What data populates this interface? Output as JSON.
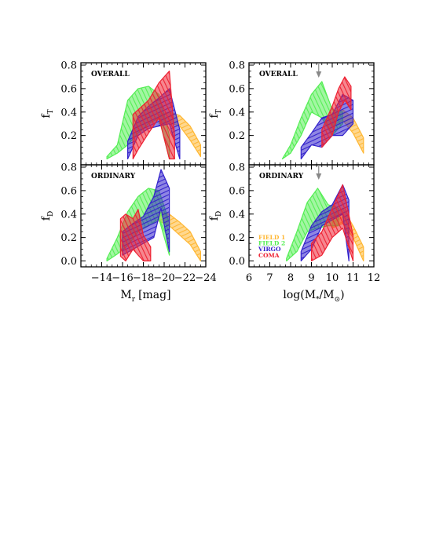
{
  "chart_data": [
    {
      "panel": "left-top",
      "type": "area",
      "label": "OVERALL",
      "ylabel": "f",
      "ylabel_sub": "T",
      "xlim": [
        -12,
        -24
      ],
      "ylim": [
        -0.05,
        0.82
      ],
      "yticks": [
        0.2,
        0.4,
        0.6,
        0.8
      ],
      "series": [
        {
          "color": "#ffb733",
          "x": [
            -19.5,
            -20.5,
            -21.5,
            -22.5,
            -23.5
          ],
          "lower": [
            0.3,
            0.31,
            0.28,
            0.16,
            0.02
          ],
          "upper": [
            0.38,
            0.4,
            0.37,
            0.28,
            0.12
          ]
        },
        {
          "color": "#55ee55",
          "x": [
            -14.5,
            -15.5,
            -16.5,
            -17.5,
            -18.5,
            -19.5,
            -20.5
          ],
          "lower": [
            0.0,
            0.05,
            0.12,
            0.22,
            0.3,
            0.35,
            0.0
          ],
          "upper": [
            0.02,
            0.12,
            0.5,
            0.6,
            0.62,
            0.55,
            0.2
          ]
        },
        {
          "color": "#3322cc",
          "x": [
            -16.5,
            -17.5,
            -18.5,
            -19.5,
            -20.5,
            -21.5
          ],
          "lower": [
            0.0,
            0.2,
            0.26,
            0.28,
            0.3,
            0.0
          ],
          "upper": [
            0.15,
            0.36,
            0.45,
            0.52,
            0.6,
            0.25
          ]
        },
        {
          "color": "#ee2233",
          "x": [
            -17.0,
            -17.5,
            -18.5,
            -19.5,
            -20.5,
            -21.0
          ],
          "lower": [
            0.0,
            0.08,
            0.22,
            0.35,
            0.0,
            0.0
          ],
          "upper": [
            0.38,
            0.42,
            0.5,
            0.65,
            0.75,
            0.2
          ]
        }
      ]
    },
    {
      "panel": "left-bottom",
      "type": "area",
      "label": "ORDINARY",
      "ylabel": "f",
      "ylabel_sub": "D",
      "xlabel": "M",
      "xlabel_sub": "r",
      "xlabel_tail": "[mag]",
      "xlim": [
        -12,
        -24
      ],
      "xticks": [
        -14,
        -16,
        -18,
        -20,
        -22,
        -24
      ],
      "ylim": [
        -0.05,
        0.82
      ],
      "yticks": [
        0.0,
        0.2,
        0.4,
        0.6,
        0.8
      ],
      "series": [
        {
          "color": "#ffb733",
          "x": [
            -19.5,
            -20.5,
            -21.5,
            -22.5,
            -23.5
          ],
          "lower": [
            0.34,
            0.3,
            0.22,
            0.14,
            0.0
          ],
          "upper": [
            0.42,
            0.4,
            0.33,
            0.25,
            0.08
          ]
        },
        {
          "color": "#55ee55",
          "x": [
            -14.5,
            -15.5,
            -16.5,
            -17.5,
            -18.5,
            -19.5,
            -20.5
          ],
          "lower": [
            0.0,
            0.06,
            0.13,
            0.25,
            0.3,
            0.36,
            0.05
          ],
          "upper": [
            0.02,
            0.2,
            0.42,
            0.55,
            0.62,
            0.6,
            0.33
          ]
        },
        {
          "color": "#3322cc",
          "x": [
            -16.0,
            -17.0,
            -18.0,
            -19.0,
            -19.7,
            -20.5
          ],
          "lower": [
            0.05,
            0.1,
            0.15,
            0.2,
            0.45,
            0.08
          ],
          "upper": [
            0.25,
            0.32,
            0.38,
            0.55,
            0.78,
            0.62
          ]
        },
        {
          "color": "#ee2233",
          "x": [
            -15.8,
            -16.3,
            -17.0,
            -17.5,
            -18.0,
            -18.7
          ],
          "lower": [
            0.04,
            0.0,
            0.1,
            0.05,
            0.0,
            0.0
          ],
          "upper": [
            0.36,
            0.4,
            0.36,
            0.44,
            0.22,
            0.12
          ]
        }
      ]
    },
    {
      "panel": "right-top",
      "type": "area",
      "label": "OVERALL",
      "ylabel": "f",
      "ylabel_sub": "T",
      "xlim": [
        6,
        12
      ],
      "ylim": [
        -0.05,
        0.82
      ],
      "yticks": [
        0.2,
        0.4,
        0.6,
        0.8
      ],
      "arrow_x": 9.35,
      "series": [
        {
          "color": "#ffb733",
          "x": [
            10.0,
            10.5,
            11.0,
            11.5
          ],
          "lower": [
            0.28,
            0.33,
            0.22,
            0.05
          ],
          "upper": [
            0.38,
            0.42,
            0.35,
            0.18
          ]
        },
        {
          "color": "#55ee55",
          "x": [
            7.6,
            8.0,
            8.5,
            9.0,
            9.5,
            10.0,
            10.5
          ],
          "lower": [
            0.0,
            0.05,
            0.2,
            0.4,
            0.35,
            0.2,
            0.3
          ],
          "upper": [
            0.0,
            0.12,
            0.35,
            0.55,
            0.66,
            0.42,
            0.4
          ]
        },
        {
          "color": "#3322cc",
          "x": [
            8.5,
            9.0,
            9.5,
            10.0,
            10.5,
            11.0
          ],
          "lower": [
            0.0,
            0.12,
            0.1,
            0.2,
            0.2,
            0.3
          ],
          "upper": [
            0.1,
            0.22,
            0.35,
            0.38,
            0.55,
            0.5
          ]
        },
        {
          "color": "#ee2233",
          "x": [
            9.5,
            10.0,
            10.3,
            10.6,
            10.9
          ],
          "lower": [
            0.1,
            0.2,
            0.4,
            0.5,
            0.42
          ],
          "upper": [
            0.25,
            0.45,
            0.6,
            0.7,
            0.62
          ]
        }
      ]
    },
    {
      "panel": "right-bottom",
      "type": "area",
      "label": "ORDINARY",
      "ylabel": "f",
      "ylabel_sub": "D",
      "xlabel": "log(M",
      "xlabel_sub": "*",
      "xlabel_mid": "/M",
      "xlabel_sub2": "⊙",
      "xlabel_tail": ")",
      "xlim": [
        6,
        12
      ],
      "xticks": [
        6,
        7,
        8,
        9,
        10,
        11,
        12
      ],
      "ylim": [
        -0.05,
        0.82
      ],
      "yticks": [
        0.0,
        0.2,
        0.4,
        0.6,
        0.8
      ],
      "arrow_x": 9.35,
      "legend": [
        {
          "label": "FIELD 1",
          "color": "#ffb733"
        },
        {
          "label": "FIELD 2",
          "color": "#55ee55"
        },
        {
          "label": "VIRGO",
          "color": "#3322cc"
        },
        {
          "label": "COMA",
          "color": "#ee2233"
        }
      ],
      "series": [
        {
          "color": "#ffb733",
          "x": [
            10.0,
            10.5,
            11.0,
            11.5
          ],
          "lower": [
            0.28,
            0.32,
            0.2,
            0.0
          ],
          "upper": [
            0.38,
            0.45,
            0.3,
            0.12
          ]
        },
        {
          "color": "#55ee55",
          "x": [
            7.8,
            8.3,
            8.8,
            9.3,
            9.8,
            10.3
          ],
          "lower": [
            0.0,
            0.08,
            0.25,
            0.28,
            0.3,
            0.3
          ],
          "upper": [
            0.02,
            0.25,
            0.5,
            0.62,
            0.48,
            0.45
          ]
        },
        {
          "color": "#3322cc",
          "x": [
            8.5,
            9.0,
            9.5,
            10.0,
            10.5,
            10.8
          ],
          "lower": [
            0.0,
            0.1,
            0.3,
            0.35,
            0.4,
            0.0
          ],
          "upper": [
            0.08,
            0.3,
            0.42,
            0.48,
            0.65,
            0.52
          ]
        },
        {
          "color": "#ee2233",
          "x": [
            9.0,
            9.5,
            10.0,
            10.5,
            11.0
          ],
          "lower": [
            0.0,
            0.05,
            0.2,
            0.28,
            0.0
          ],
          "upper": [
            0.15,
            0.25,
            0.45,
            0.65,
            0.22
          ]
        }
      ]
    }
  ]
}
